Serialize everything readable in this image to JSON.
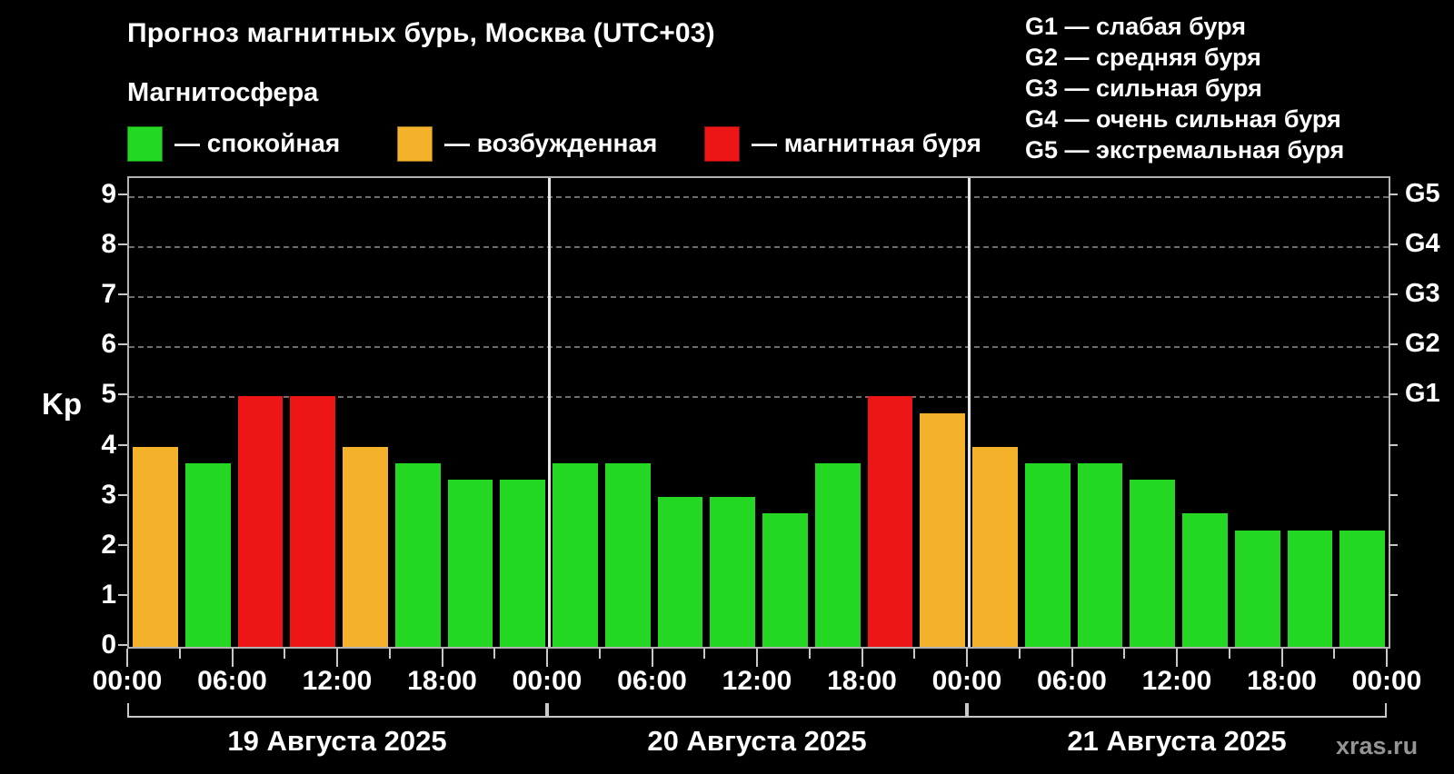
{
  "header": {
    "title": "Прогноз магнитных бурь, Москва (UTC+03)",
    "subtitle": "Магнитосфера",
    "legend": [
      {
        "key": "green",
        "label": "— спокойная"
      },
      {
        "key": "orange",
        "label": "— возбужденная"
      },
      {
        "key": "red",
        "label": "— магнитная буря"
      }
    ],
    "g_scale_legend": [
      "G1 — слабая буря",
      "G2 — средняя буря",
      "G3 — сильная буря",
      "G4 — очень сильная буря",
      "G5 — экстремальная буря"
    ]
  },
  "watermark": "xras.ru",
  "chart_data": {
    "type": "bar",
    "title": "Прогноз магнитных бурь, Москва (UTC+03)",
    "ylabel": "Kp",
    "ylim": [
      0,
      9
    ],
    "y_ticks": [
      0,
      1,
      2,
      3,
      4,
      5,
      6,
      7,
      8,
      9
    ],
    "gridlines_at": [
      5,
      6,
      7,
      8,
      9
    ],
    "grid": "dashed horizontal at Kp 5-9, legend top, right axis G-scale",
    "right_axis_labels": [
      {
        "kp": 5,
        "label": "G1"
      },
      {
        "kp": 6,
        "label": "G2"
      },
      {
        "kp": 7,
        "label": "G3"
      },
      {
        "kp": 8,
        "label": "G4"
      },
      {
        "kp": 9,
        "label": "G5"
      }
    ],
    "x_tick_labels": [
      "00:00",
      "06:00",
      "12:00",
      "18:00",
      "00:00",
      "06:00",
      "12:00",
      "18:00",
      "00:00",
      "06:00",
      "12:00",
      "18:00",
      "00:00"
    ],
    "hours_per_bar": 3,
    "status_colors": {
      "green": "#23d723",
      "orange": "#f3b229",
      "red": "#ed1515"
    },
    "days": [
      {
        "date": "19 Августа 2025",
        "values": [
          4.0,
          3.67,
          5.0,
          5.0,
          4.0,
          3.67,
          3.33,
          3.33
        ],
        "colors": [
          "orange",
          "green",
          "red",
          "red",
          "orange",
          "green",
          "green",
          "green"
        ]
      },
      {
        "date": "20 Августа 2025",
        "values": [
          3.67,
          3.67,
          3.0,
          3.0,
          2.67,
          3.67,
          5.0,
          4.67
        ],
        "colors": [
          "green",
          "green",
          "green",
          "green",
          "green",
          "green",
          "red",
          "orange"
        ]
      },
      {
        "date": "21 Августа 2025",
        "values": [
          4.0,
          3.67,
          3.67,
          3.33,
          2.67,
          2.33,
          2.33,
          2.33
        ],
        "colors": [
          "orange",
          "green",
          "green",
          "green",
          "green",
          "green",
          "green",
          "green"
        ]
      }
    ]
  }
}
